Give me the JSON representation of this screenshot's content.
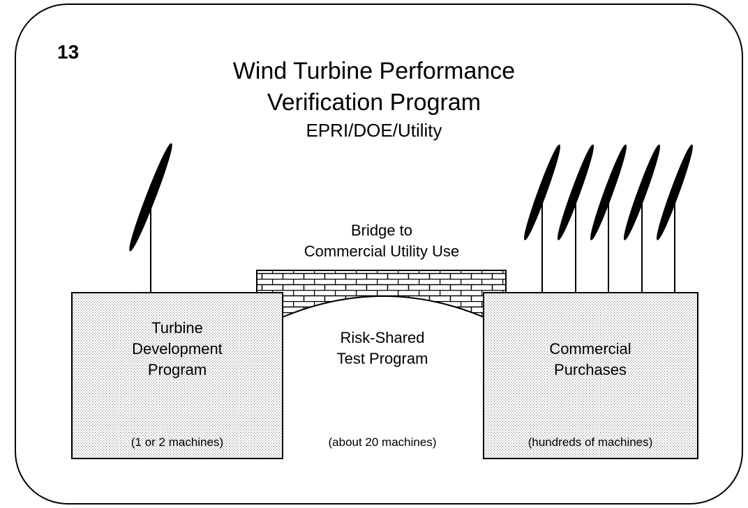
{
  "slide_number": "13",
  "title": [
    "Wind Turbine Performance",
    "Verification Program"
  ],
  "subtitle": "EPRI/DOE/Utility",
  "bridge_label": [
    "Bridge to",
    "Commercial Utility Use"
  ],
  "stages": [
    {
      "label": [
        "Turbine",
        "Development",
        "Program"
      ],
      "note": "(1 or 2 machines)"
    },
    {
      "label": [
        "Risk-Shared",
        "Test Program"
      ],
      "note": "(about 20 machines)"
    },
    {
      "label": [
        "Commercial",
        "Purchases"
      ],
      "note": "(hundreds of machines)"
    }
  ]
}
